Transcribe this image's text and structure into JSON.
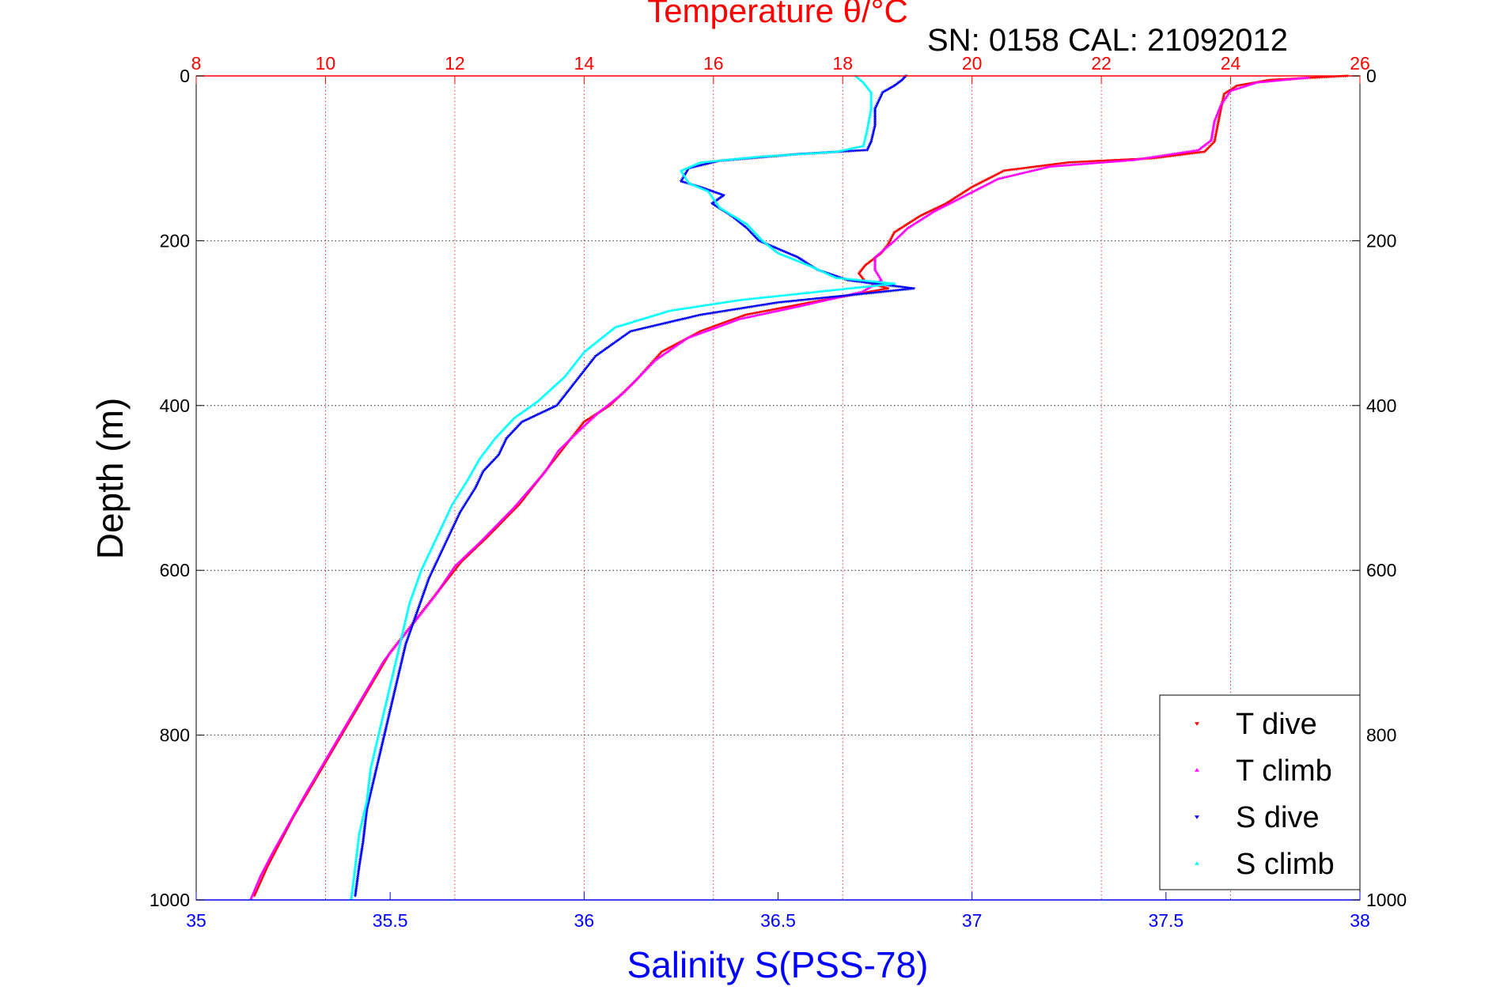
{
  "chart_data": {
    "type": "scatter",
    "title": "Temperature θ/°C",
    "annotation": "SN: 0158  CAL: 21092012",
    "xlabel": "Salinity S(PSS-78)",
    "ylabel": "Depth (m)",
    "x_bottom": {
      "label": "Salinity S(PSS-78)",
      "range": [
        35,
        38
      ],
      "ticks": [
        "35",
        "35.5",
        "36",
        "36.5",
        "37",
        "37.5",
        "38"
      ],
      "color": "#0000ff"
    },
    "x_top": {
      "label": "Temperature θ/°C",
      "range": [
        8,
        26
      ],
      "ticks": [
        "8",
        "10",
        "12",
        "14",
        "16",
        "18",
        "20",
        "22",
        "24",
        "26"
      ],
      "color": "#ff0000"
    },
    "y": {
      "label": "Depth (m)",
      "range": [
        0,
        1000
      ],
      "reversed": true,
      "ticks": [
        "0",
        "200",
        "400",
        "600",
        "800",
        "1000"
      ]
    },
    "grid": true,
    "legend_position": "bottom-right",
    "series": [
      {
        "name": "T dive",
        "axis": "temperature",
        "color": "#ff0000",
        "marker": "triangle-down",
        "points": [
          [
            25.8,
            0
          ],
          [
            24.6,
            5
          ],
          [
            24.1,
            12
          ],
          [
            23.9,
            22
          ],
          [
            23.85,
            40
          ],
          [
            23.8,
            60
          ],
          [
            23.75,
            80
          ],
          [
            23.6,
            92
          ],
          [
            22.8,
            100
          ],
          [
            21.5,
            105
          ],
          [
            20.5,
            115
          ],
          [
            20.0,
            135
          ],
          [
            19.6,
            155
          ],
          [
            19.2,
            170
          ],
          [
            18.8,
            190
          ],
          [
            18.7,
            205
          ],
          [
            18.6,
            215
          ],
          [
            18.35,
            230
          ],
          [
            18.25,
            240
          ],
          [
            18.35,
            250
          ],
          [
            18.7,
            258
          ],
          [
            18.0,
            268
          ],
          [
            17.5,
            275
          ],
          [
            16.5,
            290
          ],
          [
            15.8,
            310
          ],
          [
            15.2,
            335
          ],
          [
            14.8,
            370
          ],
          [
            14.4,
            400
          ],
          [
            14.0,
            420
          ],
          [
            13.8,
            440
          ],
          [
            13.6,
            460
          ],
          [
            13.3,
            490
          ],
          [
            13.0,
            520
          ],
          [
            12.5,
            560
          ],
          [
            12.1,
            590
          ],
          [
            11.8,
            620
          ],
          [
            11.4,
            660
          ],
          [
            11.0,
            700
          ],
          [
            10.7,
            740
          ],
          [
            10.4,
            780
          ],
          [
            10.1,
            820
          ],
          [
            9.8,
            860
          ],
          [
            9.5,
            900
          ],
          [
            9.3,
            930
          ],
          [
            9.1,
            960
          ],
          [
            8.9,
            995
          ]
        ]
      },
      {
        "name": "T climb",
        "axis": "temperature",
        "color": "#ff00ff",
        "marker": "triangle-up",
        "points": [
          [
            25.2,
            2
          ],
          [
            24.4,
            8
          ],
          [
            24.0,
            18
          ],
          [
            23.85,
            35
          ],
          [
            23.75,
            55
          ],
          [
            23.7,
            78
          ],
          [
            23.5,
            90
          ],
          [
            22.5,
            102
          ],
          [
            21.2,
            110
          ],
          [
            20.4,
            125
          ],
          [
            19.9,
            145
          ],
          [
            19.4,
            165
          ],
          [
            19.0,
            185
          ],
          [
            18.8,
            200
          ],
          [
            18.5,
            220
          ],
          [
            18.5,
            235
          ],
          [
            18.6,
            248
          ],
          [
            18.3,
            262
          ],
          [
            17.3,
            280
          ],
          [
            16.4,
            295
          ],
          [
            15.6,
            318
          ],
          [
            15.1,
            345
          ],
          [
            14.6,
            385
          ],
          [
            14.2,
            410
          ],
          [
            13.9,
            432
          ],
          [
            13.6,
            455
          ],
          [
            13.4,
            480
          ],
          [
            12.9,
            525
          ],
          [
            12.4,
            565
          ],
          [
            12.0,
            595
          ],
          [
            11.7,
            630
          ],
          [
            11.3,
            670
          ],
          [
            10.9,
            710
          ],
          [
            10.6,
            750
          ],
          [
            10.3,
            790
          ],
          [
            10.0,
            830
          ],
          [
            9.7,
            870
          ],
          [
            9.45,
            905
          ],
          [
            9.2,
            940
          ],
          [
            9.0,
            970
          ],
          [
            8.85,
            998
          ]
        ]
      },
      {
        "name": "S dive",
        "axis": "salinity",
        "color": "#0000ff",
        "marker": "triangle-down",
        "points": [
          [
            36.83,
            0
          ],
          [
            36.82,
            5
          ],
          [
            36.8,
            12
          ],
          [
            36.77,
            20
          ],
          [
            36.75,
            40
          ],
          [
            36.75,
            60
          ],
          [
            36.74,
            80
          ],
          [
            36.73,
            90
          ],
          [
            36.55,
            95
          ],
          [
            36.35,
            103
          ],
          [
            36.27,
            112
          ],
          [
            36.25,
            128
          ],
          [
            36.3,
            135
          ],
          [
            36.36,
            145
          ],
          [
            36.33,
            155
          ],
          [
            36.38,
            170
          ],
          [
            36.42,
            185
          ],
          [
            36.45,
            200
          ],
          [
            36.55,
            220
          ],
          [
            36.6,
            235
          ],
          [
            36.68,
            248
          ],
          [
            36.85,
            258
          ],
          [
            36.75,
            263
          ],
          [
            36.5,
            275
          ],
          [
            36.3,
            290
          ],
          [
            36.12,
            310
          ],
          [
            36.03,
            340
          ],
          [
            35.98,
            370
          ],
          [
            35.93,
            400
          ],
          [
            35.84,
            420
          ],
          [
            35.8,
            440
          ],
          [
            35.78,
            460
          ],
          [
            35.74,
            480
          ],
          [
            35.72,
            500
          ],
          [
            35.68,
            530
          ],
          [
            35.64,
            570
          ],
          [
            35.6,
            610
          ],
          [
            35.57,
            650
          ],
          [
            35.54,
            690
          ],
          [
            35.52,
            730
          ],
          [
            35.5,
            770
          ],
          [
            35.48,
            810
          ],
          [
            35.46,
            850
          ],
          [
            35.44,
            890
          ],
          [
            35.43,
            930
          ],
          [
            35.42,
            960
          ],
          [
            35.41,
            995
          ]
        ]
      },
      {
        "name": "S climb",
        "axis": "salinity",
        "color": "#00ffff",
        "marker": "triangle-up",
        "points": [
          [
            36.7,
            0
          ],
          [
            36.72,
            8
          ],
          [
            36.74,
            20
          ],
          [
            36.74,
            40
          ],
          [
            36.73,
            65
          ],
          [
            36.72,
            85
          ],
          [
            36.65,
            92
          ],
          [
            36.45,
            98
          ],
          [
            36.3,
            105
          ],
          [
            36.25,
            115
          ],
          [
            36.27,
            130
          ],
          [
            36.32,
            140
          ],
          [
            36.35,
            160
          ],
          [
            36.42,
            180
          ],
          [
            36.46,
            200
          ],
          [
            36.5,
            215
          ],
          [
            36.58,
            230
          ],
          [
            36.65,
            245
          ],
          [
            36.8,
            252
          ],
          [
            36.6,
            262
          ],
          [
            36.4,
            272
          ],
          [
            36.22,
            285
          ],
          [
            36.08,
            305
          ],
          [
            36.0,
            335
          ],
          [
            35.95,
            365
          ],
          [
            35.88,
            395
          ],
          [
            35.82,
            415
          ],
          [
            35.77,
            440
          ],
          [
            35.73,
            465
          ],
          [
            35.7,
            490
          ],
          [
            35.66,
            520
          ],
          [
            35.62,
            560
          ],
          [
            35.58,
            600
          ],
          [
            35.55,
            640
          ],
          [
            35.53,
            680
          ],
          [
            35.51,
            720
          ],
          [
            35.49,
            760
          ],
          [
            35.47,
            800
          ],
          [
            35.45,
            840
          ],
          [
            35.44,
            880
          ],
          [
            35.42,
            920
          ],
          [
            35.41,
            960
          ],
          [
            35.4,
            998
          ]
        ]
      }
    ]
  }
}
